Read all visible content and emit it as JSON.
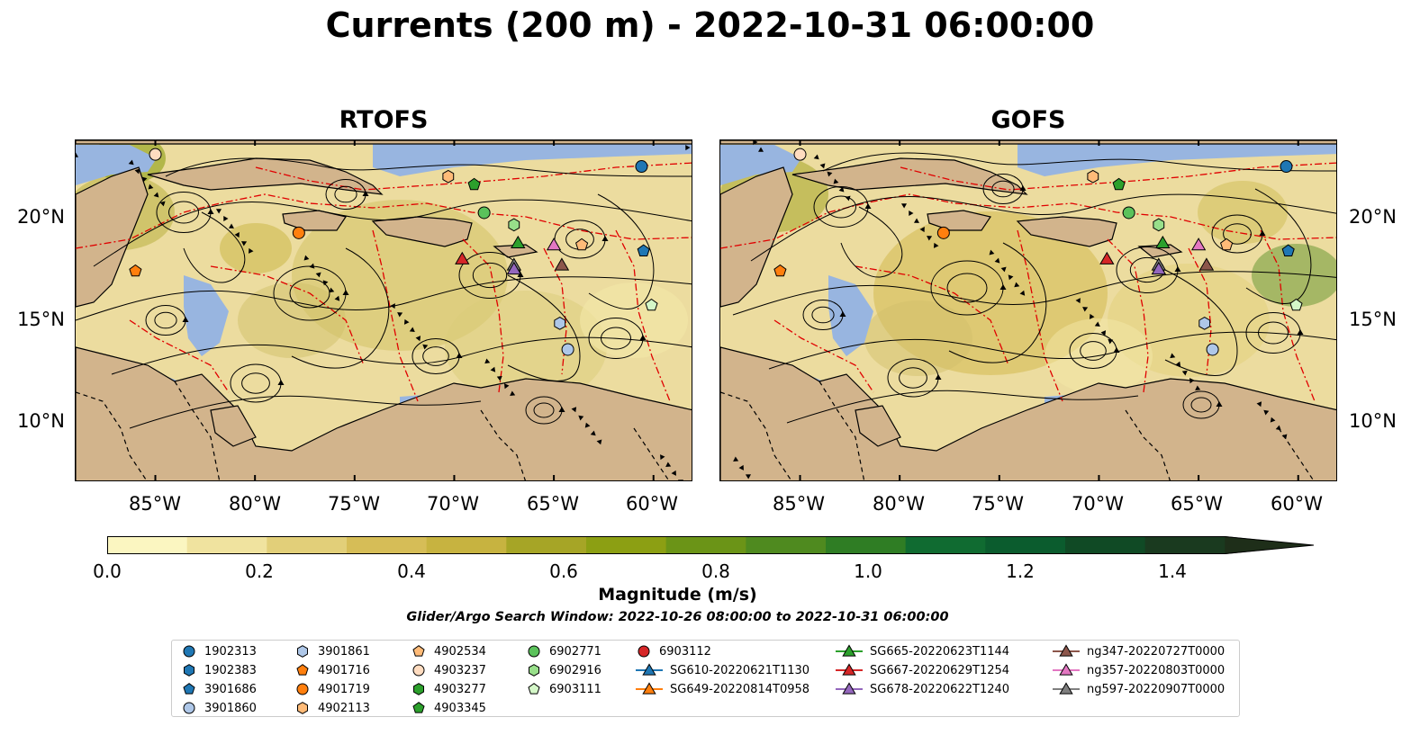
{
  "title": "Currents (200 m) - 2022-10-31 06:00:00",
  "panels": [
    {
      "name": "RTOFS"
    },
    {
      "name": "GOFS"
    }
  ],
  "lon_ticks": [
    "85°W",
    "80°W",
    "75°W",
    "70°W",
    "65°W",
    "60°W"
  ],
  "lat_ticks": [
    "20°N",
    "15°N",
    "10°N"
  ],
  "colorbar": {
    "label": "Magnitude (m/s)",
    "ticks": [
      "0.0",
      "0.2",
      "0.4",
      "0.6",
      "0.8",
      "1.0",
      "1.2",
      "1.4"
    ],
    "range": [
      0,
      1.5
    ],
    "colors": [
      "#fbf6c1",
      "#f0e39f",
      "#e2cf79",
      "#d6bd57",
      "#c7b340",
      "#a6a526",
      "#8c9f13",
      "#6b9417",
      "#4f8a1f",
      "#2f7d24",
      "#106b31",
      "#0b5c2e",
      "#104a25",
      "#1a3a1f",
      "#1e2e19"
    ]
  },
  "search_window": "Glider/Argo Search Window: 2022-10-26 08:00:00 to 2022-10-31 06:00:00",
  "legend": [
    {
      "label": "1902313",
      "marker": "circle",
      "color": "#1f77b4"
    },
    {
      "label": "1902383",
      "marker": "hexagon",
      "color": "#1f77b4"
    },
    {
      "label": "3901686",
      "marker": "pentagon",
      "color": "#1f77b4"
    },
    {
      "label": "3901860",
      "marker": "circle",
      "color": "#aec7e8"
    },
    {
      "label": "3901861",
      "marker": "hexagon",
      "color": "#aec7e8"
    },
    {
      "label": "4901716",
      "marker": "pentagon",
      "color": "#ff7f0e"
    },
    {
      "label": "4901719",
      "marker": "circle",
      "color": "#ff7f0e"
    },
    {
      "label": "4902113",
      "marker": "hexagon",
      "color": "#ffbb78"
    },
    {
      "label": "4902534",
      "marker": "pentagon",
      "color": "#ffbb78"
    },
    {
      "label": "4903237",
      "marker": "circle",
      "color": "#ffdcc0"
    },
    {
      "label": "4903277",
      "marker": "hexagon",
      "color": "#2ca02c"
    },
    {
      "label": "4903345",
      "marker": "pentagon",
      "color": "#2ca02c"
    },
    {
      "label": "6902771",
      "marker": "circle",
      "color": "#5bc25b"
    },
    {
      "label": "6902916",
      "marker": "hexagon",
      "color": "#98df8a"
    },
    {
      "label": "6903111",
      "marker": "pentagon",
      "color": "#d4f7c8"
    },
    {
      "label": "6903112",
      "marker": "circle",
      "color": "#d62728"
    },
    {
      "label": "SG610-20220621T1130",
      "marker": "triangle",
      "color": "#1f77b4"
    },
    {
      "label": "SG649-20220814T0958",
      "marker": "triangle",
      "color": "#ff7f0e"
    },
    {
      "label": "SG665-20220623T1144",
      "marker": "triangle",
      "color": "#2ca02c"
    },
    {
      "label": "SG667-20220629T1254",
      "marker": "triangle",
      "color": "#d62728"
    },
    {
      "label": "SG678-20220622T1240",
      "marker": "triangle",
      "color": "#9467bd"
    },
    {
      "label": "ng347-20220727T0000",
      "marker": "triangle",
      "color": "#8c564b"
    },
    {
      "label": "ng357-20220803T0000",
      "marker": "triangle",
      "color": "#e377c2"
    },
    {
      "label": "ng597-20220907T0000",
      "marker": "triangle",
      "color": "#7f7f7f"
    }
  ],
  "map": {
    "extent_lon": [
      -89,
      -58
    ],
    "extent_lat": [
      7,
      24
    ],
    "colors": {
      "land": "#d2b48c",
      "shallow_water": "#98b5e0",
      "boundary": "#000000",
      "eez": "#e00000",
      "streamline": "#000000"
    },
    "observations": [
      {
        "label": "4903237",
        "lon": -85.0,
        "lat": 23.3
      },
      {
        "label": "1902313",
        "lon": -60.6,
        "lat": 22.7
      },
      {
        "label": "4902113",
        "lon": -70.3,
        "lat": 22.2
      },
      {
        "label": "4903345",
        "lon": -69.0,
        "lat": 21.8
      },
      {
        "label": "6902771",
        "lon": -68.5,
        "lat": 20.4
      },
      {
        "label": "6902916",
        "lon": -67.0,
        "lat": 19.8
      },
      {
        "label": "4901719",
        "lon": -77.8,
        "lat": 19.4
      },
      {
        "label": "4902534",
        "lon": -63.6,
        "lat": 18.8
      },
      {
        "label": "3901686",
        "lon": -60.5,
        "lat": 18.5
      },
      {
        "label": "4901716",
        "lon": -86.0,
        "lat": 17.5
      },
      {
        "label": "6903111",
        "lon": -60.1,
        "lat": 15.8
      },
      {
        "label": "3901861",
        "lon": -64.7,
        "lat": 14.9
      },
      {
        "label": "3901860",
        "lon": -64.3,
        "lat": 13.6
      },
      {
        "label": "SG665-20220623T1144",
        "lon": -66.8,
        "lat": 18.9
      },
      {
        "label": "ng357-20220803T0000",
        "lon": -65.0,
        "lat": 18.8
      },
      {
        "label": "SG667-20220629T1254",
        "lon": -69.6,
        "lat": 18.1
      },
      {
        "label": "ng597-20220907T0000",
        "lon": -67.0,
        "lat": 17.8
      },
      {
        "label": "SG678-20220622T1240",
        "lon": -67.0,
        "lat": 17.6
      },
      {
        "label": "ng347-20220727T0000",
        "lon": -64.6,
        "lat": 17.8
      }
    ]
  }
}
